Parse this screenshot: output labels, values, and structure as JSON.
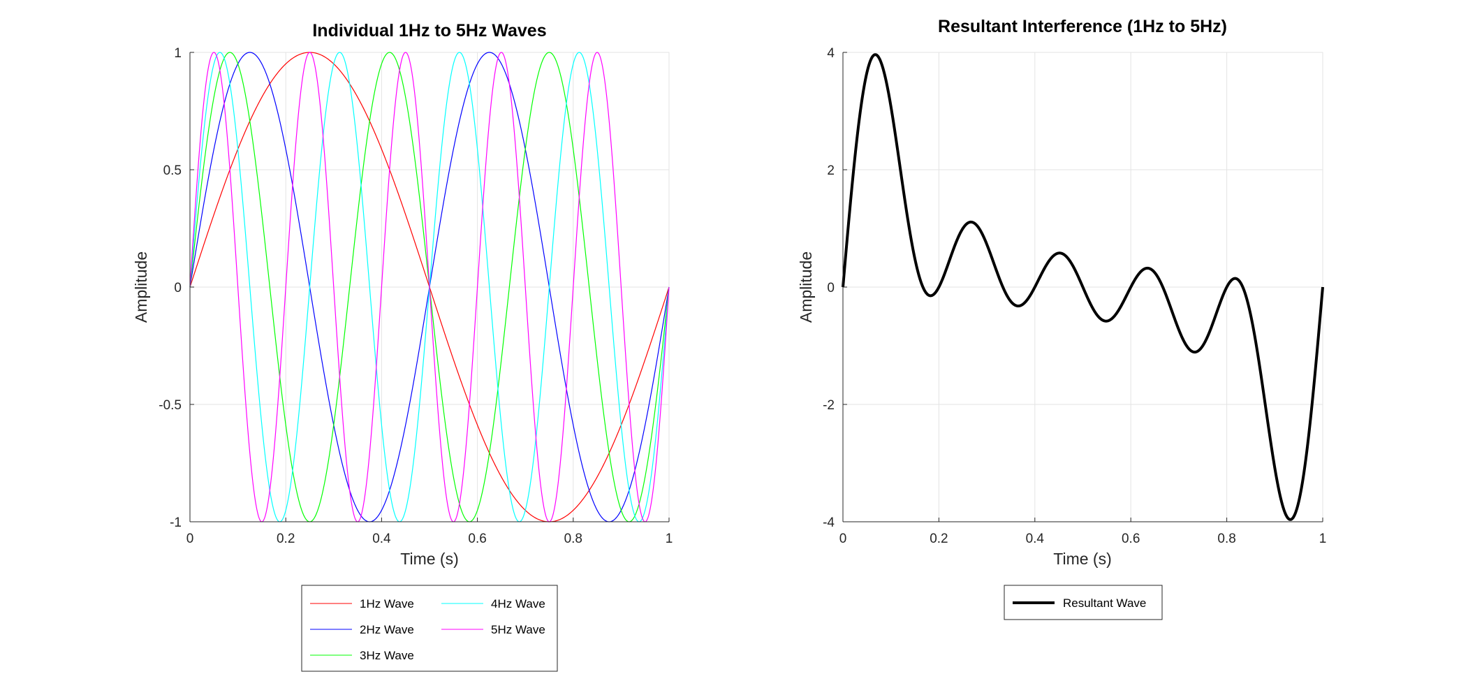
{
  "chart_data": [
    {
      "type": "line",
      "title": "Individual 1Hz to 5Hz Waves",
      "xlabel": "Time (s)",
      "ylabel": "Amplitude",
      "xlim": [
        0,
        1
      ],
      "ylim": [
        -1,
        1
      ],
      "xticks": [
        "0",
        "0.2",
        "0.4",
        "0.6",
        "0.8",
        "1"
      ],
      "yticks": [
        "-1",
        "-0.5",
        "0",
        "0.5",
        "1"
      ],
      "xtick_values": [
        0,
        0.2,
        0.4,
        0.6,
        0.8,
        1
      ],
      "ytick_values": [
        -1,
        -0.5,
        0,
        0.5,
        1
      ],
      "grid": true,
      "legend_position": "bottom-outside",
      "series": [
        {
          "name": "1Hz Wave",
          "function": "sin",
          "frequency_hz": 1,
          "amplitude": 1,
          "color": "#ff0000"
        },
        {
          "name": "2Hz Wave",
          "function": "sin",
          "frequency_hz": 2,
          "amplitude": 1,
          "color": "#0000ff"
        },
        {
          "name": "3Hz Wave",
          "function": "sin",
          "frequency_hz": 3,
          "amplitude": 1,
          "color": "#00ff00"
        },
        {
          "name": "4Hz Wave",
          "function": "sin",
          "frequency_hz": 4,
          "amplitude": 1,
          "color": "#00ffff"
        },
        {
          "name": "5Hz Wave",
          "function": "sin",
          "frequency_hz": 5,
          "amplitude": 1,
          "color": "#ff00ff"
        }
      ]
    },
    {
      "type": "line",
      "title": "Resultant Interference (1Hz to 5Hz)",
      "xlabel": "Time (s)",
      "ylabel": "Amplitude",
      "xlim": [
        0,
        1
      ],
      "ylim": [
        -4,
        4
      ],
      "xticks": [
        "0",
        "0.2",
        "0.4",
        "0.6",
        "0.8",
        "1"
      ],
      "yticks": [
        "-4",
        "-2",
        "0",
        "2",
        "4"
      ],
      "xtick_values": [
        0,
        0.2,
        0.4,
        0.6,
        0.8,
        1
      ],
      "ytick_values": [
        -4,
        -2,
        0,
        2,
        4
      ],
      "grid": true,
      "legend_position": "bottom-outside",
      "series": [
        {
          "name": "Resultant Wave",
          "function": "sum of sin",
          "frequencies_hz": [
            1,
            2,
            3,
            4,
            5
          ],
          "amplitude": 1,
          "color": "#000000"
        }
      ]
    }
  ]
}
